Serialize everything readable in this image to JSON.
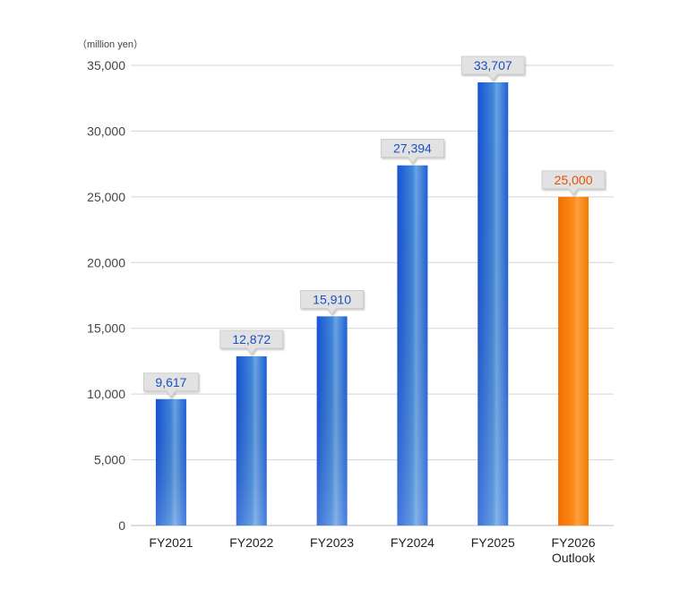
{
  "chart_data": {
    "type": "bar",
    "unit_label": "（million yen）",
    "categories": [
      [
        "FY2021"
      ],
      [
        "FY2022"
      ],
      [
        "FY2023"
      ],
      [
        "FY2024"
      ],
      [
        "FY2025"
      ],
      [
        "FY2026",
        "Outlook"
      ]
    ],
    "values": [
      9617,
      12872,
      15910,
      27394,
      33707,
      25000
    ],
    "value_labels": [
      "9,617",
      "12,872",
      "15,910",
      "27,394",
      "33,707",
      "25,000"
    ],
    "highlight": [
      false,
      false,
      false,
      false,
      false,
      true
    ],
    "ylim": [
      0,
      35000
    ],
    "yticks": [
      0,
      5000,
      10000,
      15000,
      20000,
      25000,
      30000,
      35000
    ],
    "ytick_labels": [
      "0",
      "5,000",
      "10,000",
      "15,000",
      "20,000",
      "25,000",
      "30,000",
      "35,000"
    ],
    "grid": true,
    "colors": {
      "actual_bar": "#1a5fd6",
      "outlook_bar": "#f57c00",
      "actual_label": "#1a4fc4",
      "outlook_label": "#e65100",
      "callout_fill": "#e2e2e2"
    }
  }
}
